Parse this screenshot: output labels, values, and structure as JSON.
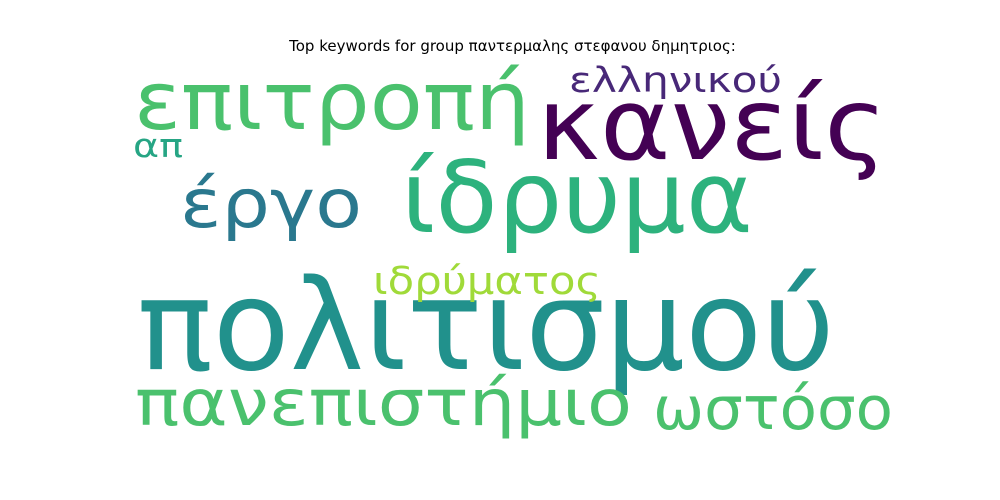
{
  "chart_data": {
    "type": "wordcloud",
    "title": "Top keywords for group παντερμαλης στεφανου δημητριος:",
    "words": [
      {
        "text": "πολιτισμού",
        "color": "#21918c"
      },
      {
        "text": "ίδρυμα",
        "color": "#2db27d"
      },
      {
        "text": "κανείς",
        "color": "#440154"
      },
      {
        "text": "επιτροπή",
        "color": "#4ac16d"
      },
      {
        "text": "πανεπιστήμιο",
        "color": "#4ac16d"
      },
      {
        "text": "ωστόσο",
        "color": "#4ac16d"
      },
      {
        "text": "έργο",
        "color": "#2a788e"
      },
      {
        "text": "ελληνικού",
        "color": "#482878"
      },
      {
        "text": "ιδρύματος",
        "color": "#a0da39"
      },
      {
        "text": "απ",
        "color": "#26a584"
      }
    ]
  }
}
